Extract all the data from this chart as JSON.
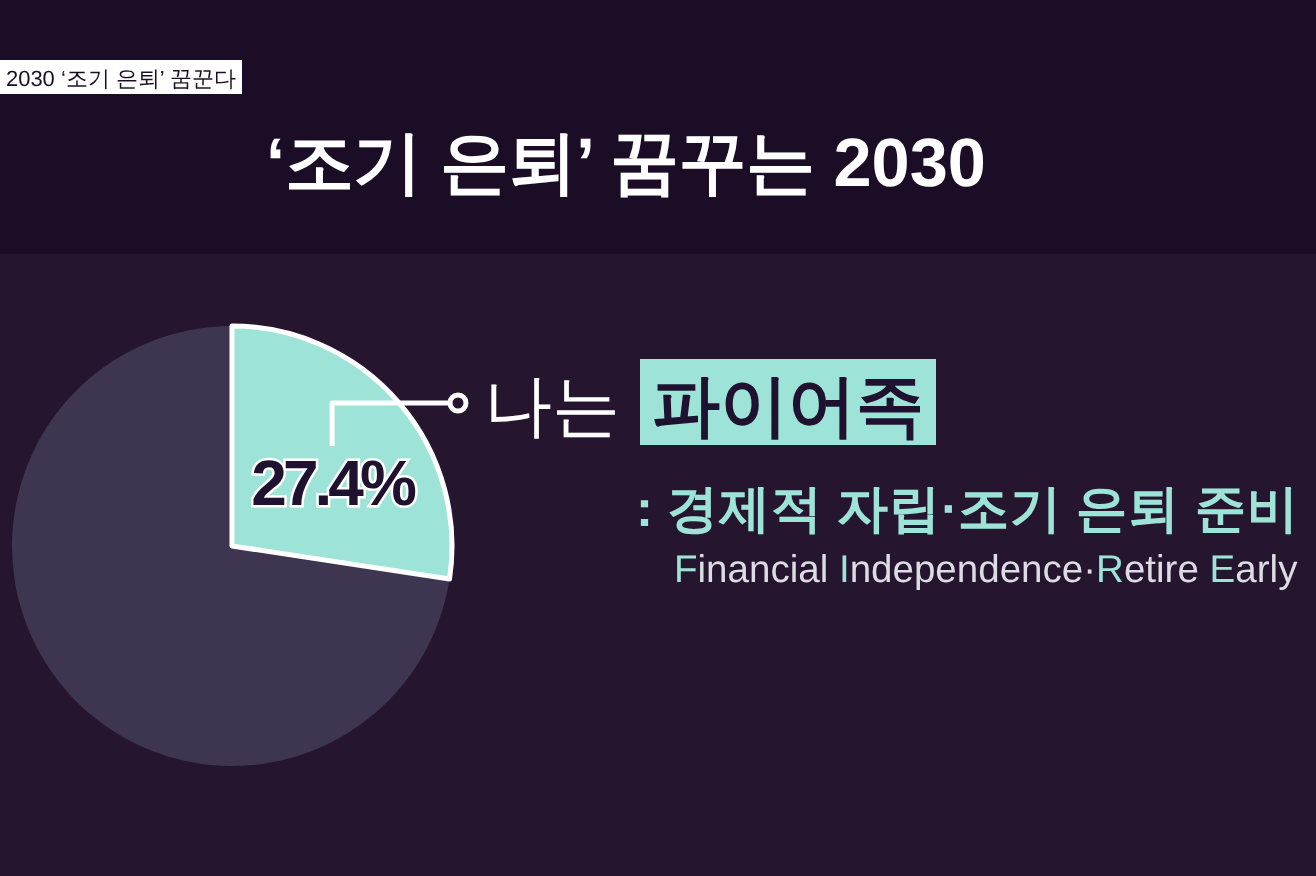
{
  "chart_data": {
    "type": "pie",
    "title": "‘조기 은퇴’ 꿈꾸는 2030",
    "categories": [
      "나는 **파이어족**",
      null
    ],
    "values": [
      27.4,
      72.6
    ],
    "colors": [
      "#9ee3d8",
      "#3e3550"
    ],
    "value_labels": [
      "27.4%",
      null
    ],
    "annotations": [
      "2030 ‘조기 은퇴’ 꿈꾼다",
      ": 경제적 자립·조기 은퇴 준비",
      "Financial Independence·Retire Early"
    ]
  }
}
